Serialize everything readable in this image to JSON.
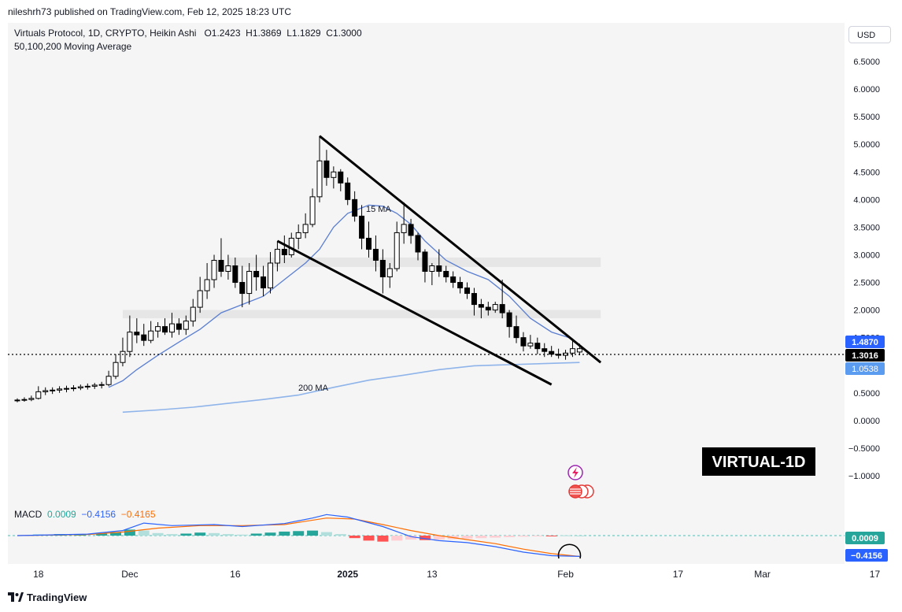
{
  "header": {
    "published": "nileshrh73 published on TradingView.com, Feb 12, 2025 18:23 UTC"
  },
  "legend": {
    "symbol": "Virtuals Protocol, 1D, CRYPTO, Heikin Ashi",
    "o_label": "O",
    "o_value": "1.2423",
    "h_label": "H",
    "h_value": "1.3869",
    "l_label": "L",
    "l_value": "1.1829",
    "c_label": "C",
    "c_value": "1.3000",
    "ma": "50,100,200 Moving Average"
  },
  "currency_button": "USD",
  "annotations": {
    "ma15": "15 MA",
    "ma200": "200 MA",
    "tag": "VIRTUAL-1D"
  },
  "price_badges": {
    "upper": "1.4870",
    "current": "1.3016",
    "lower": "1.0538"
  },
  "macd": {
    "label": "MACD",
    "v1": "0.0009",
    "v2": "−0.4156",
    "v3": "−0.4165",
    "badge_top": "0.0009",
    "badge_bottom": "−0.4156"
  },
  "footer": {
    "brand": "TradingView"
  },
  "colors": {
    "up_candle": "#ffffff",
    "down_candle": "#000000",
    "ma15": "#5b7fd1",
    "ma200": "#8fb4ea",
    "macd_line": "#2962ff",
    "signal_line": "#ff6d00",
    "hist_pos_strong": "#26a69a",
    "hist_pos_weak": "#b2dfdb",
    "hist_neg_strong": "#ff5252",
    "hist_neg_weak": "#ffcdd2",
    "support_zone": "#e6e6e6"
  },
  "chart_data": {
    "type": "candlestick",
    "title": "Virtuals Protocol, 1D, CRYPTO, Heikin Ashi",
    "y_ticks": [
      6.5,
      6.0,
      5.5,
      5.0,
      4.5,
      4.0,
      3.5,
      3.0,
      2.5,
      2.0,
      1.5,
      1.0,
      0.5,
      0.0,
      -0.5,
      -1.0
    ],
    "y_tick_labels": [
      "6.5000",
      "6.0000",
      "5.5000",
      "5.0000",
      "4.5000",
      "4.0000",
      "3.5000",
      "3.0000",
      "2.5000",
      "2.0000",
      "1.5000",
      "1.0000",
      "0.5000",
      "0.0000",
      "−0.5000",
      "−1.0000"
    ],
    "ylim": [
      -1.3,
      6.9
    ],
    "x_ticks": [
      {
        "label": "18",
        "day": 3
      },
      {
        "label": "Dec",
        "day": 16
      },
      {
        "label": "16",
        "day": 31
      },
      {
        "label": "2025",
        "day": 47
      },
      {
        "label": "13",
        "day": 59
      },
      {
        "label": "Feb",
        "day": 78
      },
      {
        "label": "17",
        "day": 94
      },
      {
        "label": "Mar",
        "day": 106
      },
      {
        "label": "17",
        "day": 122
      }
    ],
    "xlim": [
      0,
      131
    ],
    "candles": [
      {
        "day": 0,
        "o": 0.36,
        "h": 0.4,
        "l": 0.33,
        "c": 0.37
      },
      {
        "day": 1,
        "o": 0.37,
        "h": 0.42,
        "l": 0.34,
        "c": 0.38
      },
      {
        "day": 2,
        "o": 0.38,
        "h": 0.45,
        "l": 0.35,
        "c": 0.4
      },
      {
        "day": 3,
        "o": 0.4,
        "h": 0.62,
        "l": 0.38,
        "c": 0.52
      },
      {
        "day": 4,
        "o": 0.52,
        "h": 0.6,
        "l": 0.46,
        "c": 0.54
      },
      {
        "day": 5,
        "o": 0.54,
        "h": 0.6,
        "l": 0.48,
        "c": 0.55
      },
      {
        "day": 6,
        "o": 0.55,
        "h": 0.62,
        "l": 0.5,
        "c": 0.57
      },
      {
        "day": 7,
        "o": 0.57,
        "h": 0.63,
        "l": 0.51,
        "c": 0.58
      },
      {
        "day": 8,
        "o": 0.58,
        "h": 0.64,
        "l": 0.53,
        "c": 0.59
      },
      {
        "day": 9,
        "o": 0.59,
        "h": 0.65,
        "l": 0.55,
        "c": 0.61
      },
      {
        "day": 10,
        "o": 0.61,
        "h": 0.67,
        "l": 0.56,
        "c": 0.62
      },
      {
        "day": 11,
        "o": 0.62,
        "h": 0.68,
        "l": 0.57,
        "c": 0.64
      },
      {
        "day": 12,
        "o": 0.64,
        "h": 0.7,
        "l": 0.58,
        "c": 0.65
      },
      {
        "day": 13,
        "o": 0.65,
        "h": 0.9,
        "l": 0.62,
        "c": 0.8
      },
      {
        "day": 14,
        "o": 0.8,
        "h": 1.2,
        "l": 0.75,
        "c": 1.05
      },
      {
        "day": 15,
        "o": 1.05,
        "h": 1.5,
        "l": 0.98,
        "c": 1.25
      },
      {
        "day": 16,
        "o": 1.25,
        "h": 1.9,
        "l": 1.15,
        "c": 1.6
      },
      {
        "day": 17,
        "o": 1.6,
        "h": 1.85,
        "l": 1.4,
        "c": 1.55
      },
      {
        "day": 18,
        "o": 1.55,
        "h": 1.75,
        "l": 1.35,
        "c": 1.45
      },
      {
        "day": 19,
        "o": 1.45,
        "h": 1.8,
        "l": 1.4,
        "c": 1.62
      },
      {
        "day": 20,
        "o": 1.62,
        "h": 1.78,
        "l": 1.5,
        "c": 1.7
      },
      {
        "day": 21,
        "o": 1.7,
        "h": 1.85,
        "l": 1.55,
        "c": 1.6
      },
      {
        "day": 22,
        "o": 1.6,
        "h": 1.95,
        "l": 1.5,
        "c": 1.75
      },
      {
        "day": 23,
        "o": 1.75,
        "h": 1.85,
        "l": 1.55,
        "c": 1.65
      },
      {
        "day": 24,
        "o": 1.65,
        "h": 1.9,
        "l": 1.55,
        "c": 1.8
      },
      {
        "day": 25,
        "o": 1.8,
        "h": 2.2,
        "l": 1.7,
        "c": 2.05
      },
      {
        "day": 26,
        "o": 2.05,
        "h": 2.6,
        "l": 1.95,
        "c": 2.35
      },
      {
        "day": 27,
        "o": 2.35,
        "h": 2.85,
        "l": 2.2,
        "c": 2.55
      },
      {
        "day": 28,
        "o": 2.55,
        "h": 3.0,
        "l": 2.4,
        "c": 2.9
      },
      {
        "day": 29,
        "o": 2.9,
        "h": 3.3,
        "l": 2.6,
        "c": 2.7
      },
      {
        "day": 30,
        "o": 2.7,
        "h": 3.0,
        "l": 2.55,
        "c": 2.8
      },
      {
        "day": 31,
        "o": 2.8,
        "h": 2.95,
        "l": 2.4,
        "c": 2.5
      },
      {
        "day": 32,
        "o": 2.5,
        "h": 2.8,
        "l": 2.05,
        "c": 2.3
      },
      {
        "day": 33,
        "o": 2.3,
        "h": 2.85,
        "l": 2.1,
        "c": 2.7
      },
      {
        "day": 34,
        "o": 2.7,
        "h": 3.0,
        "l": 2.35,
        "c": 2.6
      },
      {
        "day": 35,
        "o": 2.6,
        "h": 2.8,
        "l": 2.25,
        "c": 2.4
      },
      {
        "day": 36,
        "o": 2.4,
        "h": 3.05,
        "l": 2.3,
        "c": 2.85
      },
      {
        "day": 37,
        "o": 2.85,
        "h": 3.25,
        "l": 2.7,
        "c": 3.1
      },
      {
        "day": 38,
        "o": 3.1,
        "h": 3.35,
        "l": 2.85,
        "c": 3.0
      },
      {
        "day": 39,
        "o": 3.0,
        "h": 3.4,
        "l": 2.95,
        "c": 3.3
      },
      {
        "day": 40,
        "o": 3.3,
        "h": 3.55,
        "l": 3.1,
        "c": 3.4
      },
      {
        "day": 41,
        "o": 3.4,
        "h": 3.75,
        "l": 3.3,
        "c": 3.55
      },
      {
        "day": 42,
        "o": 3.55,
        "h": 4.2,
        "l": 3.5,
        "c": 4.05
      },
      {
        "day": 43,
        "o": 4.05,
        "h": 5.15,
        "l": 3.95,
        "c": 4.7
      },
      {
        "day": 44,
        "o": 4.7,
        "h": 4.9,
        "l": 4.25,
        "c": 4.4
      },
      {
        "day": 45,
        "o": 4.4,
        "h": 4.6,
        "l": 4.2,
        "c": 4.5
      },
      {
        "day": 46,
        "o": 4.5,
        "h": 4.55,
        "l": 4.15,
        "c": 4.3
      },
      {
        "day": 47,
        "o": 4.3,
        "h": 4.4,
        "l": 3.9,
        "c": 4.0
      },
      {
        "day": 48,
        "o": 4.0,
        "h": 4.15,
        "l": 3.6,
        "c": 3.7
      },
      {
        "day": 49,
        "o": 3.7,
        "h": 3.9,
        "l": 3.1,
        "c": 3.3
      },
      {
        "day": 50,
        "o": 3.3,
        "h": 3.6,
        "l": 2.95,
        "c": 3.1
      },
      {
        "day": 51,
        "o": 3.1,
        "h": 3.35,
        "l": 2.7,
        "c": 2.9
      },
      {
        "day": 52,
        "o": 2.9,
        "h": 3.1,
        "l": 2.3,
        "c": 2.6
      },
      {
        "day": 53,
        "o": 2.6,
        "h": 2.85,
        "l": 2.4,
        "c": 2.75
      },
      {
        "day": 54,
        "o": 2.75,
        "h": 3.6,
        "l": 2.7,
        "c": 3.4
      },
      {
        "day": 55,
        "o": 3.4,
        "h": 3.95,
        "l": 3.2,
        "c": 3.55
      },
      {
        "day": 56,
        "o": 3.55,
        "h": 3.65,
        "l": 3.2,
        "c": 3.35
      },
      {
        "day": 57,
        "o": 3.35,
        "h": 3.4,
        "l": 2.9,
        "c": 3.05
      },
      {
        "day": 58,
        "o": 3.05,
        "h": 3.1,
        "l": 2.5,
        "c": 2.7
      },
      {
        "day": 59,
        "o": 2.7,
        "h": 2.85,
        "l": 2.45,
        "c": 2.8
      },
      {
        "day": 60,
        "o": 2.8,
        "h": 3.1,
        "l": 2.6,
        "c": 2.7
      },
      {
        "day": 61,
        "o": 2.7,
        "h": 2.8,
        "l": 2.5,
        "c": 2.6
      },
      {
        "day": 62,
        "o": 2.6,
        "h": 2.7,
        "l": 2.4,
        "c": 2.5
      },
      {
        "day": 63,
        "o": 2.5,
        "h": 2.6,
        "l": 2.3,
        "c": 2.4
      },
      {
        "day": 64,
        "o": 2.4,
        "h": 2.5,
        "l": 2.2,
        "c": 2.3
      },
      {
        "day": 65,
        "o": 2.3,
        "h": 2.4,
        "l": 1.9,
        "c": 2.1
      },
      {
        "day": 66,
        "o": 2.1,
        "h": 2.2,
        "l": 1.85,
        "c": 2.05
      },
      {
        "day": 67,
        "o": 2.05,
        "h": 2.15,
        "l": 1.9,
        "c": 2.0
      },
      {
        "day": 68,
        "o": 2.0,
        "h": 2.15,
        "l": 1.95,
        "c": 2.1
      },
      {
        "day": 69,
        "o": 2.1,
        "h": 2.55,
        "l": 1.85,
        "c": 1.95
      },
      {
        "day": 70,
        "o": 1.95,
        "h": 2.0,
        "l": 1.5,
        "c": 1.7
      },
      {
        "day": 71,
        "o": 1.7,
        "h": 1.9,
        "l": 1.4,
        "c": 1.5
      },
      {
        "day": 72,
        "o": 1.5,
        "h": 1.6,
        "l": 1.25,
        "c": 1.35
      },
      {
        "day": 73,
        "o": 1.35,
        "h": 1.55,
        "l": 1.3,
        "c": 1.4
      },
      {
        "day": 74,
        "o": 1.4,
        "h": 1.5,
        "l": 1.2,
        "c": 1.3
      },
      {
        "day": 75,
        "o": 1.3,
        "h": 1.4,
        "l": 1.15,
        "c": 1.25
      },
      {
        "day": 76,
        "o": 1.25,
        "h": 1.35,
        "l": 1.15,
        "c": 1.2
      },
      {
        "day": 77,
        "o": 1.2,
        "h": 1.3,
        "l": 1.12,
        "c": 1.18
      },
      {
        "day": 78,
        "o": 1.18,
        "h": 1.28,
        "l": 1.1,
        "c": 1.22
      },
      {
        "day": 79,
        "o": 1.22,
        "h": 1.45,
        "l": 1.15,
        "c": 1.3
      },
      {
        "day": 80,
        "o": 1.24,
        "h": 1.39,
        "l": 1.18,
        "c": 1.3
      }
    ],
    "ma15": [
      {
        "day": 13,
        "v": 0.6
      },
      {
        "day": 15,
        "v": 0.72
      },
      {
        "day": 17,
        "v": 0.92
      },
      {
        "day": 20,
        "v": 1.18
      },
      {
        "day": 23,
        "v": 1.42
      },
      {
        "day": 26,
        "v": 1.65
      },
      {
        "day": 29,
        "v": 1.95
      },
      {
        "day": 32,
        "v": 2.1
      },
      {
        "day": 35,
        "v": 2.25
      },
      {
        "day": 38,
        "v": 2.55
      },
      {
        "day": 41,
        "v": 2.85
      },
      {
        "day": 43,
        "v": 3.1
      },
      {
        "day": 45,
        "v": 3.5
      },
      {
        "day": 47,
        "v": 3.75
      },
      {
        "day": 50,
        "v": 3.9
      },
      {
        "day": 52,
        "v": 3.88
      },
      {
        "day": 54,
        "v": 3.75
      },
      {
        "day": 56,
        "v": 3.55
      },
      {
        "day": 58,
        "v": 3.25
      },
      {
        "day": 61,
        "v": 2.9
      },
      {
        "day": 64,
        "v": 2.7
      },
      {
        "day": 67,
        "v": 2.55
      },
      {
        "day": 70,
        "v": 2.25
      },
      {
        "day": 73,
        "v": 1.85
      },
      {
        "day": 76,
        "v": 1.6
      },
      {
        "day": 79,
        "v": 1.48
      }
    ],
    "ma200": [
      {
        "day": 15,
        "v": 0.15
      },
      {
        "day": 20,
        "v": 0.19
      },
      {
        "day": 25,
        "v": 0.24
      },
      {
        "day": 30,
        "v": 0.31
      },
      {
        "day": 35,
        "v": 0.38
      },
      {
        "day": 40,
        "v": 0.46
      },
      {
        "day": 45,
        "v": 0.6
      },
      {
        "day": 50,
        "v": 0.73
      },
      {
        "day": 55,
        "v": 0.82
      },
      {
        "day": 60,
        "v": 0.92
      },
      {
        "day": 65,
        "v": 0.99
      },
      {
        "day": 70,
        "v": 1.01
      },
      {
        "day": 75,
        "v": 1.03
      },
      {
        "day": 80,
        "v": 1.05
      }
    ],
    "trendlines": [
      {
        "name": "upper",
        "from": {
          "day": 43,
          "v": 5.15
        },
        "to": {
          "day": 83,
          "v": 1.05
        }
      },
      {
        "name": "lower",
        "from": {
          "day": 37,
          "v": 3.25
        },
        "to": {
          "day": 76,
          "v": 0.65
        }
      }
    ],
    "zones": [
      {
        "name": "resistance-zone",
        "from_day": 30,
        "to_day": 83,
        "low": 2.78,
        "high": 2.95
      },
      {
        "name": "support-zone",
        "from_day": 15,
        "to_day": 83,
        "low": 1.85,
        "high": 2.0
      }
    ],
    "current_price": 1.3016,
    "macd_ylim": [
      -0.55,
      0.55
    ],
    "macd_line": [
      {
        "day": 0,
        "v": 0.0
      },
      {
        "day": 10,
        "v": 0.03
      },
      {
        "day": 15,
        "v": 0.1
      },
      {
        "day": 18,
        "v": 0.25
      },
      {
        "day": 22,
        "v": 0.2
      },
      {
        "day": 28,
        "v": 0.22
      },
      {
        "day": 32,
        "v": 0.18
      },
      {
        "day": 38,
        "v": 0.24
      },
      {
        "day": 42,
        "v": 0.35
      },
      {
        "day": 44,
        "v": 0.42
      },
      {
        "day": 47,
        "v": 0.37
      },
      {
        "day": 52,
        "v": 0.18
      },
      {
        "day": 56,
        "v": -0.02
      },
      {
        "day": 60,
        "v": -0.1
      },
      {
        "day": 64,
        "v": -0.14
      },
      {
        "day": 68,
        "v": -0.22
      },
      {
        "day": 72,
        "v": -0.33
      },
      {
        "day": 76,
        "v": -0.4
      },
      {
        "day": 80,
        "v": -0.4156
      }
    ],
    "signal_line": [
      {
        "day": 0,
        "v": 0.0
      },
      {
        "day": 10,
        "v": 0.02
      },
      {
        "day": 15,
        "v": 0.07
      },
      {
        "day": 20,
        "v": 0.15
      },
      {
        "day": 26,
        "v": 0.2
      },
      {
        "day": 32,
        "v": 0.2
      },
      {
        "day": 38,
        "v": 0.22
      },
      {
        "day": 44,
        "v": 0.35
      },
      {
        "day": 48,
        "v": 0.33
      },
      {
        "day": 52,
        "v": 0.22
      },
      {
        "day": 56,
        "v": 0.1
      },
      {
        "day": 60,
        "v": 0.0
      },
      {
        "day": 64,
        "v": -0.08
      },
      {
        "day": 68,
        "v": -0.16
      },
      {
        "day": 72,
        "v": -0.27
      },
      {
        "day": 76,
        "v": -0.36
      },
      {
        "day": 80,
        "v": -0.4165
      }
    ],
    "macd_hist": [
      {
        "day": 3,
        "v": 0.02
      },
      {
        "day": 6,
        "v": 0.03
      },
      {
        "day": 9,
        "v": 0.03
      },
      {
        "day": 12,
        "v": 0.04
      },
      {
        "day": 14,
        "v": 0.07
      },
      {
        "day": 16,
        "v": 0.12
      },
      {
        "day": 18,
        "v": 0.1
      },
      {
        "day": 20,
        "v": 0.05
      },
      {
        "day": 22,
        "v": 0.03
      },
      {
        "day": 24,
        "v": 0.04
      },
      {
        "day": 26,
        "v": 0.06
      },
      {
        "day": 28,
        "v": 0.05
      },
      {
        "day": 30,
        "v": 0.03
      },
      {
        "day": 32,
        "v": 0.02
      },
      {
        "day": 34,
        "v": 0.04
      },
      {
        "day": 36,
        "v": 0.06
      },
      {
        "day": 38,
        "v": 0.08
      },
      {
        "day": 40,
        "v": 0.09
      },
      {
        "day": 42,
        "v": 0.1
      },
      {
        "day": 44,
        "v": 0.07
      },
      {
        "day": 46,
        "v": 0.03
      },
      {
        "day": 48,
        "v": -0.05
      },
      {
        "day": 50,
        "v": -0.1
      },
      {
        "day": 52,
        "v": -0.12
      },
      {
        "day": 54,
        "v": -0.1
      },
      {
        "day": 56,
        "v": -0.08
      },
      {
        "day": 58,
        "v": -0.09
      },
      {
        "day": 60,
        "v": -0.08
      },
      {
        "day": 62,
        "v": -0.07
      },
      {
        "day": 64,
        "v": -0.06
      },
      {
        "day": 66,
        "v": -0.05
      },
      {
        "day": 68,
        "v": -0.04
      },
      {
        "day": 70,
        "v": -0.03
      },
      {
        "day": 72,
        "v": -0.02
      },
      {
        "day": 74,
        "v": -0.01
      },
      {
        "day": 76,
        "v": -0.01
      },
      {
        "day": 78,
        "v": 0.005
      },
      {
        "day": 80,
        "v": 0.0009
      }
    ]
  }
}
